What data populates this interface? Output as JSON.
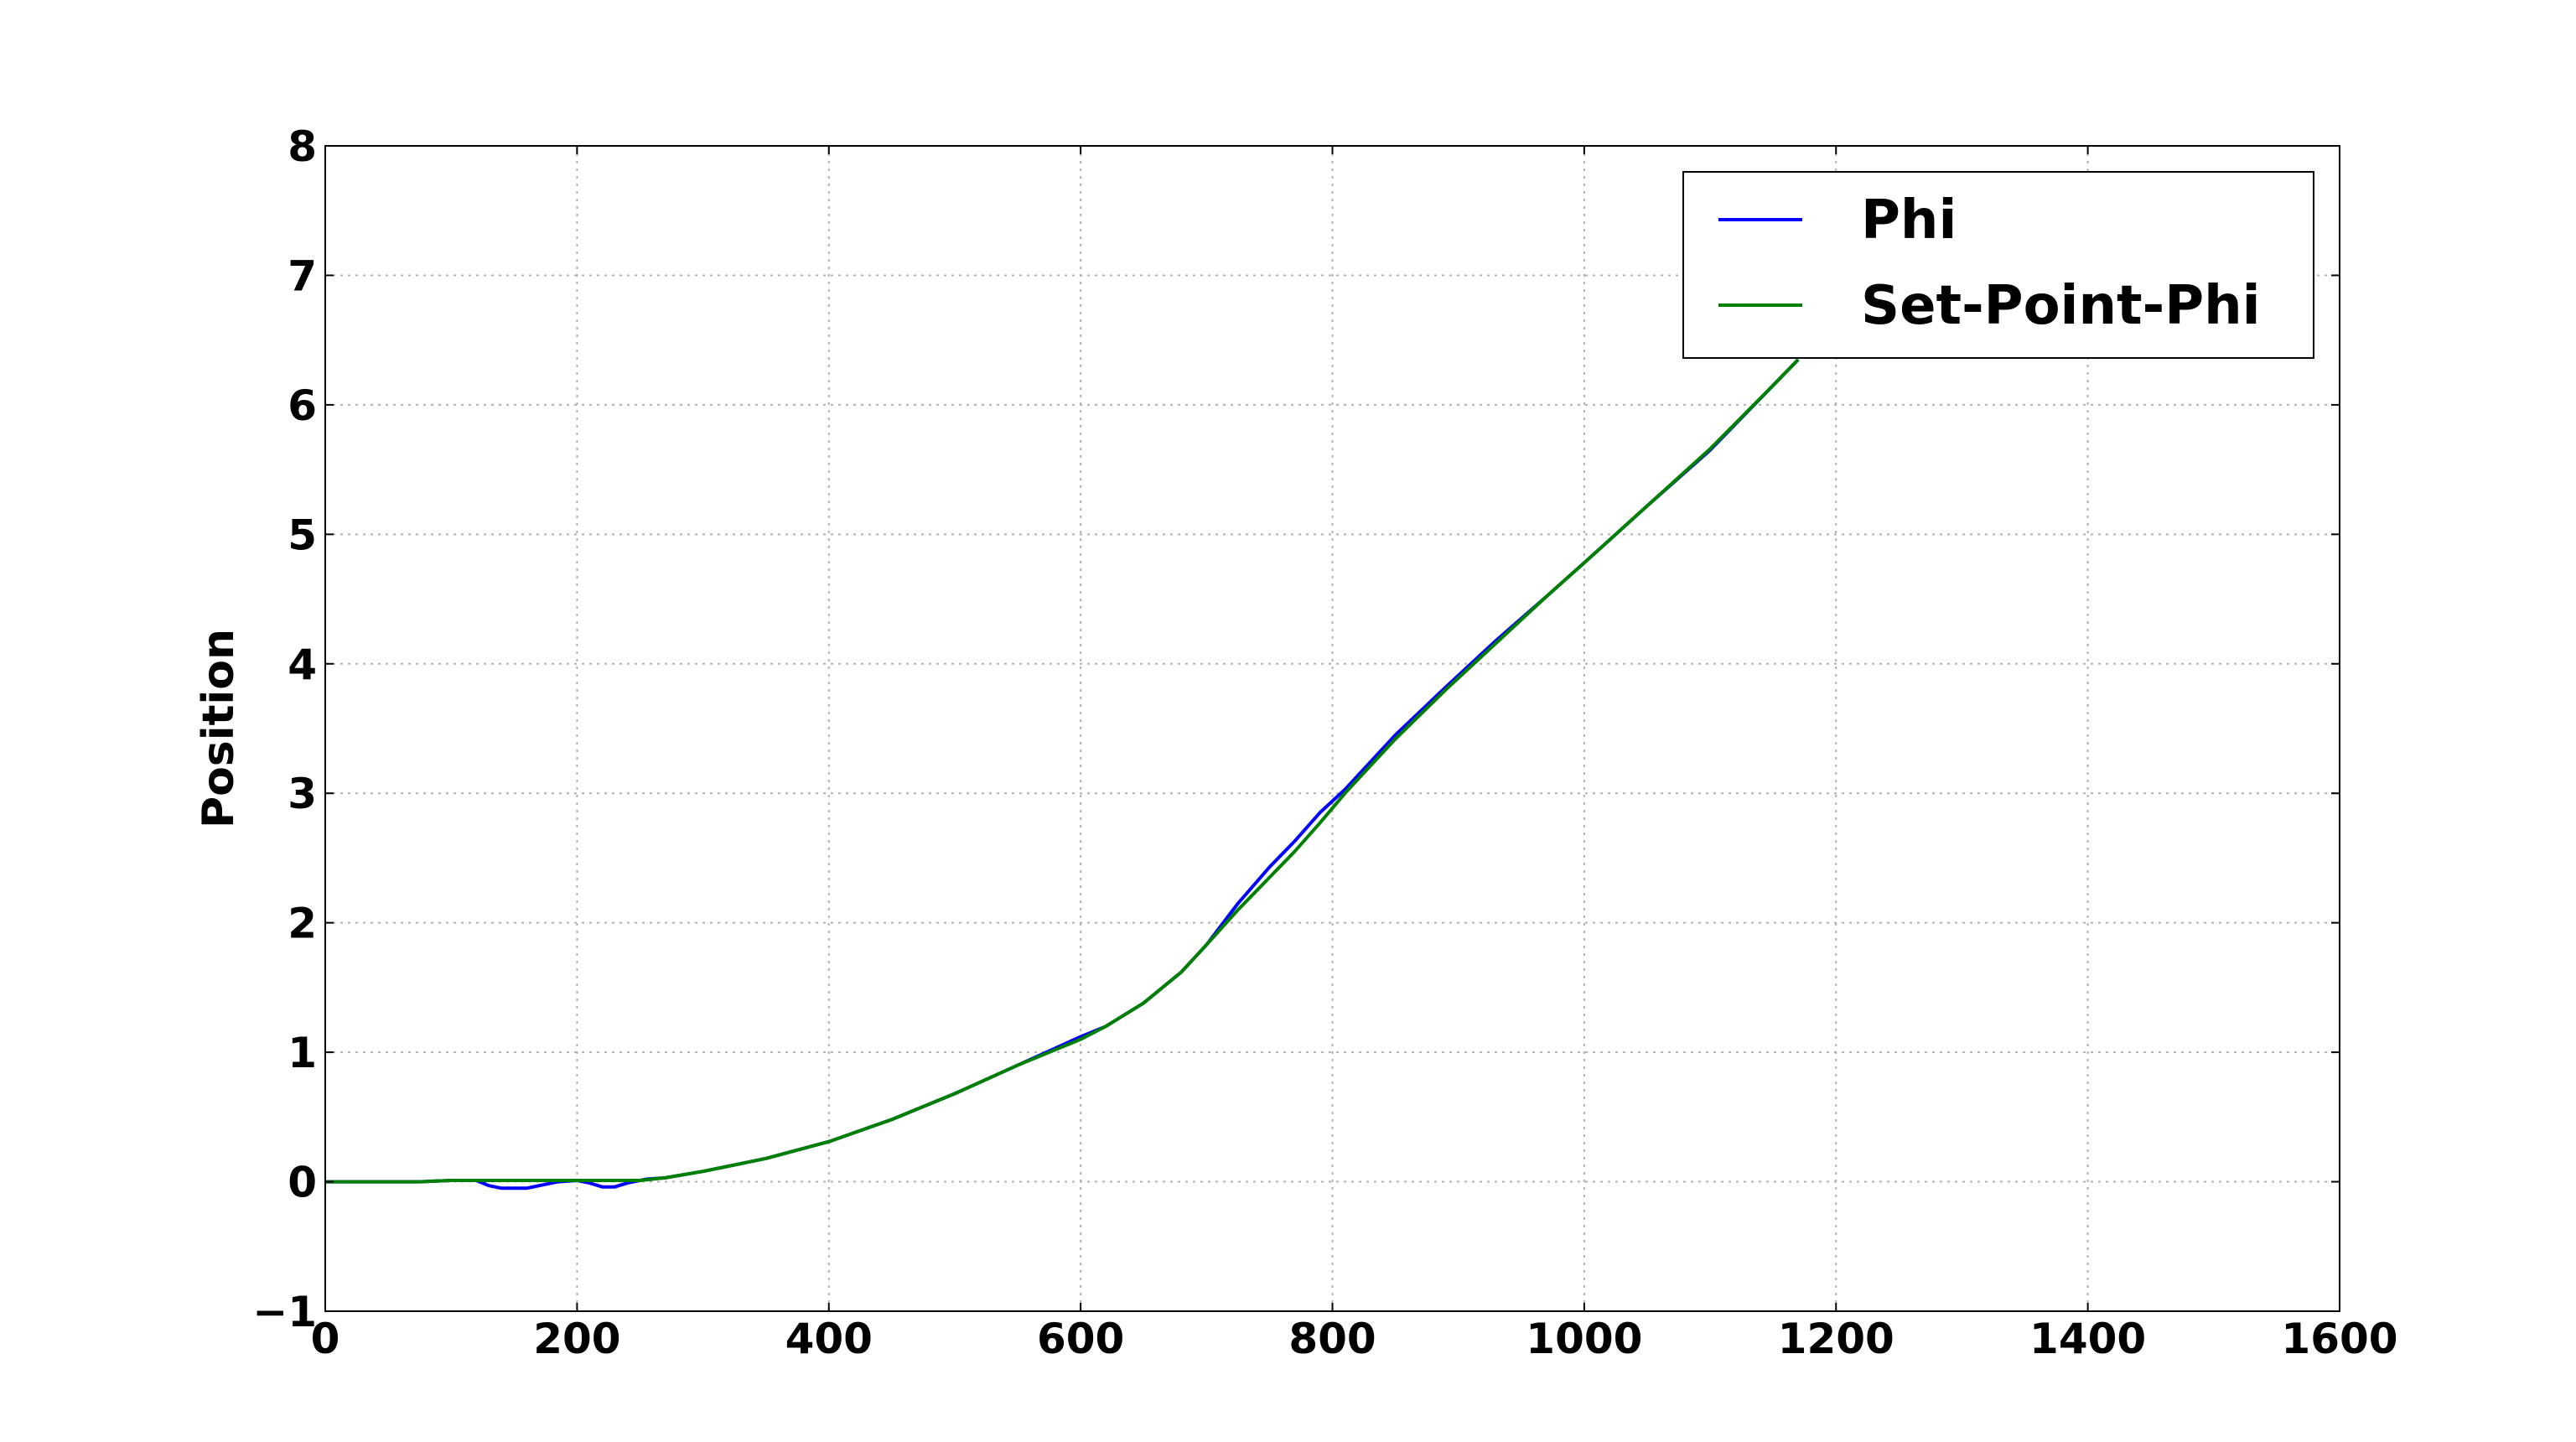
{
  "chart_data": {
    "type": "line",
    "title": "",
    "xlabel": "",
    "ylabel": "Position",
    "xlim": [
      0,
      1600
    ],
    "ylim": [
      -1,
      8
    ],
    "x_ticks": [
      "0",
      "200",
      "400",
      "600",
      "800",
      "1000",
      "1200",
      "1400",
      "1600"
    ],
    "y_ticks": [
      "−1",
      "0",
      "1",
      "2",
      "3",
      "4",
      "5",
      "6",
      "7",
      "8"
    ],
    "grid": true,
    "legend_position": "top-right",
    "series": [
      {
        "name": "Phi",
        "color": "#0000ff",
        "x": [
          0,
          75,
          100,
          120,
          130,
          140,
          160,
          170,
          185,
          200,
          210,
          220,
          230,
          240,
          255,
          270,
          300,
          350,
          400,
          450,
          500,
          550,
          600,
          620,
          650,
          680,
          700,
          725,
          750,
          770,
          790,
          810,
          850,
          890,
          930,
          970,
          1000,
          1050,
          1100,
          1150,
          1170
        ],
        "y": [
          0,
          0,
          0.01,
          0.01,
          -0.03,
          -0.05,
          -0.05,
          -0.03,
          0,
          0.01,
          -0.01,
          -0.04,
          -0.04,
          -0.01,
          0.02,
          0.03,
          0.08,
          0.18,
          0.31,
          0.48,
          0.68,
          0.9,
          1.12,
          1.2,
          1.38,
          1.62,
          1.83,
          2.15,
          2.43,
          2.63,
          2.85,
          3.03,
          3.45,
          3.82,
          4.18,
          4.52,
          4.78,
          5.22,
          5.65,
          6.15,
          6.35
        ]
      },
      {
        "name": "Set-Point-Phi",
        "color": "#008000",
        "x": [
          0,
          75,
          100,
          150,
          200,
          250,
          270,
          300,
          350,
          400,
          450,
          500,
          550,
          600,
          620,
          650,
          680,
          700,
          725,
          750,
          770,
          790,
          810,
          850,
          890,
          930,
          970,
          1000,
          1050,
          1100,
          1150,
          1170
        ],
        "y": [
          0,
          0,
          0.01,
          0.01,
          0.01,
          0.01,
          0.03,
          0.08,
          0.18,
          0.31,
          0.48,
          0.68,
          0.9,
          1.1,
          1.2,
          1.38,
          1.62,
          1.83,
          2.1,
          2.35,
          2.55,
          2.77,
          3.0,
          3.42,
          3.8,
          4.16,
          4.52,
          4.78,
          5.22,
          5.66,
          6.15,
          6.35
        ]
      }
    ]
  }
}
